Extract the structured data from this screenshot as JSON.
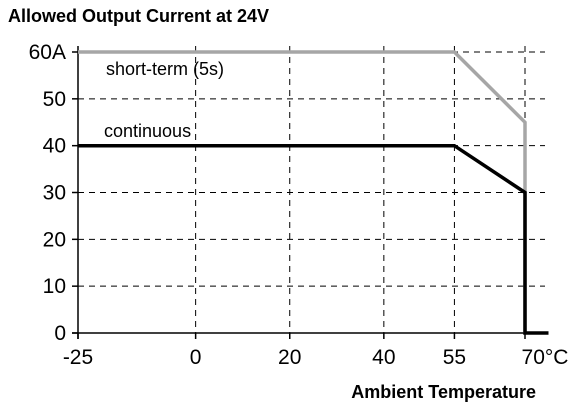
{
  "chart_data": {
    "type": "line",
    "title": "Allowed Output Current at 24V",
    "xlabel": "Ambient Temperature",
    "ylabel": "",
    "xlim": [
      -25,
      70
    ],
    "ylim": [
      0,
      60
    ],
    "grid": true,
    "x_ticks": [
      -25,
      0,
      20,
      40,
      55,
      70
    ],
    "x_tick_labels": [
      "-25",
      "0",
      "20",
      "40",
      "55",
      "70°C"
    ],
    "y_ticks": [
      0,
      10,
      20,
      30,
      40,
      50,
      60
    ],
    "y_tick_labels": [
      "0",
      "10",
      "20",
      "30",
      "40",
      "50",
      "60A"
    ],
    "series": [
      {
        "name": "short-term (5s)",
        "color": "#a6a6a6",
        "points": [
          [
            -25,
            60
          ],
          [
            55,
            60
          ],
          [
            70,
            45
          ],
          [
            70,
            0
          ]
        ]
      },
      {
        "name": "continuous",
        "color": "#000000",
        "points": [
          [
            -25,
            40
          ],
          [
            55,
            40
          ],
          [
            70,
            30
          ],
          [
            70,
            0
          ],
          [
            75,
            0
          ]
        ]
      }
    ]
  }
}
